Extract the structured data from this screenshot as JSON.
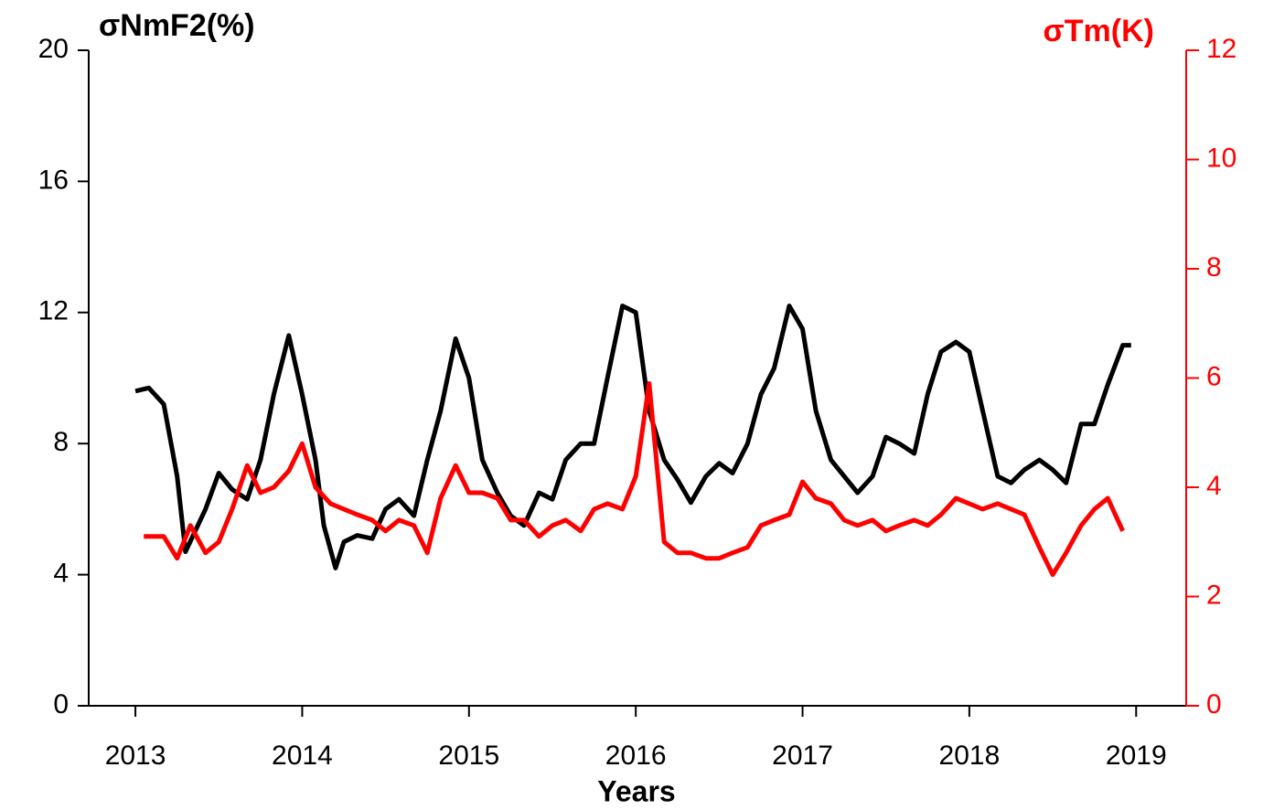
{
  "chart_data": {
    "type": "line",
    "y_label": "σNmF2(%)",
    "y2_label": "σTm(K)",
    "x_label": "Years",
    "xlim": [
      2012.72,
      2019.3
    ],
    "xticks": [
      2013,
      2014,
      2015,
      2016,
      2017,
      2018,
      2019
    ],
    "ylim": [
      0,
      20
    ],
    "yticks": [
      0,
      4,
      8,
      12,
      16,
      20
    ],
    "y2lim": [
      0,
      12
    ],
    "y2ticks": [
      0,
      2,
      4,
      6,
      8,
      10,
      12
    ],
    "y2color": "#ff0000",
    "series": [
      {
        "name": "σNmF2",
        "color": "#000000",
        "axis": "y",
        "x": [
          2013.0,
          2013.08,
          2013.17,
          2013.25,
          2013.3,
          2013.42,
          2013.5,
          2013.58,
          2013.67,
          2013.75,
          2013.83,
          2013.92,
          2014.0,
          2014.08,
          2014.13,
          2014.2,
          2014.25,
          2014.33,
          2014.42,
          2014.5,
          2014.58,
          2014.67,
          2014.75,
          2014.83,
          2014.92,
          2015.0,
          2015.08,
          2015.17,
          2015.25,
          2015.33,
          2015.42,
          2015.5,
          2015.58,
          2015.67,
          2015.75,
          2015.83,
          2015.92,
          2016.0,
          2016.08,
          2016.17,
          2016.25,
          2016.33,
          2016.42,
          2016.5,
          2016.58,
          2016.67,
          2016.75,
          2016.83,
          2016.92,
          2017.0,
          2017.08,
          2017.17,
          2017.25,
          2017.33,
          2017.42,
          2017.5,
          2017.58,
          2017.67,
          2017.75,
          2017.83,
          2017.92,
          2018.0,
          2018.08,
          2018.17,
          2018.25,
          2018.33,
          2018.42,
          2018.5,
          2018.58,
          2018.67,
          2018.75,
          2018.83,
          2018.92,
          2018.97
        ],
        "values": [
          9.6,
          9.7,
          9.2,
          7.0,
          4.7,
          6.0,
          7.1,
          6.6,
          6.3,
          7.5,
          9.5,
          11.3,
          9.5,
          7.5,
          5.5,
          4.2,
          5.0,
          5.2,
          5.1,
          6.0,
          6.3,
          5.8,
          7.5,
          9.0,
          11.2,
          10.0,
          7.5,
          6.5,
          5.8,
          5.5,
          6.5,
          6.3,
          7.5,
          8.0,
          8.0,
          10.0,
          12.2,
          12.0,
          9.0,
          7.5,
          6.9,
          6.2,
          7.0,
          7.4,
          7.1,
          8.0,
          9.5,
          10.3,
          12.2,
          11.5,
          9.0,
          7.5,
          7.0,
          6.5,
          7.0,
          8.2,
          8.0,
          7.7,
          9.5,
          10.8,
          11.1,
          10.8,
          9.0,
          7.0,
          6.8,
          7.2,
          7.5,
          7.2,
          6.8,
          8.6,
          8.6,
          9.8,
          11.0,
          11.0
        ]
      },
      {
        "name": "σTm",
        "color": "#ff0000",
        "axis": "y2",
        "x": [
          2013.05,
          2013.17,
          2013.25,
          2013.33,
          2013.42,
          2013.5,
          2013.58,
          2013.67,
          2013.75,
          2013.83,
          2013.92,
          2014.0,
          2014.08,
          2014.17,
          2014.25,
          2014.33,
          2014.42,
          2014.5,
          2014.58,
          2014.67,
          2014.75,
          2014.83,
          2014.92,
          2015.0,
          2015.08,
          2015.17,
          2015.25,
          2015.33,
          2015.42,
          2015.5,
          2015.58,
          2015.67,
          2015.75,
          2015.83,
          2015.92,
          2016.0,
          2016.08,
          2016.17,
          2016.25,
          2016.33,
          2016.42,
          2016.5,
          2016.58,
          2016.67,
          2016.75,
          2016.83,
          2016.92,
          2017.0,
          2017.08,
          2017.17,
          2017.25,
          2017.33,
          2017.42,
          2017.5,
          2017.58,
          2017.67,
          2017.75,
          2017.83,
          2017.92,
          2018.0,
          2018.08,
          2018.17,
          2018.25,
          2018.33,
          2018.42,
          2018.5,
          2018.58,
          2018.67,
          2018.75,
          2018.83,
          2018.92
        ],
        "values": [
          3.1,
          3.1,
          2.7,
          3.3,
          2.8,
          3.0,
          3.6,
          4.4,
          3.9,
          4.0,
          4.3,
          4.8,
          4.0,
          3.7,
          3.6,
          3.5,
          3.4,
          3.2,
          3.4,
          3.3,
          2.8,
          3.8,
          4.4,
          3.9,
          3.9,
          3.8,
          3.4,
          3.4,
          3.1,
          3.3,
          3.4,
          3.2,
          3.6,
          3.7,
          3.6,
          4.2,
          5.9,
          3.0,
          2.8,
          2.8,
          2.7,
          2.7,
          2.8,
          2.9,
          3.3,
          3.4,
          3.5,
          4.1,
          3.8,
          3.7,
          3.4,
          3.3,
          3.4,
          3.2,
          3.3,
          3.4,
          3.3,
          3.5,
          3.8,
          3.7,
          3.6,
          3.7,
          3.6,
          3.5,
          2.9,
          2.4,
          2.8,
          3.3,
          3.6,
          3.8,
          3.2
        ]
      }
    ]
  }
}
